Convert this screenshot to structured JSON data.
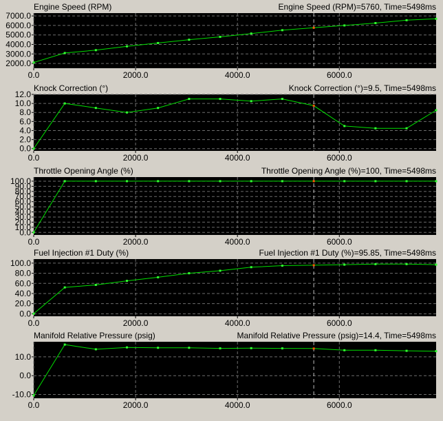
{
  "colors": {
    "window_bg": "#d4d0c8",
    "plot_bg": "#000000",
    "grid": "#6e6e6e",
    "line": "#00e000",
    "point": "#33ff33",
    "cursor_point": "#ff5500",
    "cursor_line": "#bdbdbd"
  },
  "cursor_time": 5498,
  "chart_data": [
    {
      "type": "line",
      "title": "Engine Speed (RPM)",
      "readout": "Engine Speed (RPM)=5760, Time=5498ms",
      "xlabel": "",
      "ylabel": "",
      "xlim": [
        0,
        7900
      ],
      "ylim": [
        1500,
        7300
      ],
      "x_ticks": [
        0,
        2000,
        4000,
        6000
      ],
      "x_tick_labels": [
        "0.0",
        "2000.0",
        "4000.0",
        "6000.0"
      ],
      "y_ticks": [
        2000,
        3000,
        4000,
        5000,
        6000,
        7000
      ],
      "y_tick_labels": [
        "2000.0",
        "3000.0",
        "4000.0",
        "5000.0",
        "6000.0",
        "7000.0"
      ],
      "grid": true,
      "x": [
        0,
        610,
        1220,
        1830,
        2440,
        3050,
        3660,
        4270,
        4880,
        5498,
        6100,
        6710,
        7320,
        7900
      ],
      "values": [
        2100,
        3100,
        3400,
        3800,
        4150,
        4500,
        4800,
        5150,
        5500,
        5760,
        6000,
        6250,
        6550,
        6700
      ],
      "cursor_index": 9
    },
    {
      "type": "line",
      "title": "Knock Correction (°)",
      "readout": "Knock Correction (°)=9.5, Time=5498ms",
      "xlabel": "",
      "ylabel": "",
      "xlim": [
        0,
        7900
      ],
      "ylim": [
        -0.5,
        12.0
      ],
      "x_ticks": [
        0,
        2000,
        4000,
        6000
      ],
      "x_tick_labels": [
        "0.0",
        "2000.0",
        "4000.0",
        "6000.0"
      ],
      "y_ticks": [
        0,
        2,
        4,
        6,
        8,
        10,
        12
      ],
      "y_tick_labels": [
        "0.0",
        "2.0",
        "4.0",
        "6.0",
        "8.0",
        "10.0",
        "12.0"
      ],
      "grid": true,
      "x": [
        0,
        610,
        1220,
        1830,
        2440,
        3050,
        3660,
        4270,
        4880,
        5498,
        6100,
        6710,
        7320,
        7900
      ],
      "values": [
        0.0,
        10.0,
        9.0,
        8.0,
        9.0,
        11.0,
        11.0,
        10.5,
        11.0,
        9.5,
        5.0,
        4.5,
        4.5,
        8.5
      ],
      "cursor_index": 9
    },
    {
      "type": "line",
      "title": "Throttle Opening Angle (%)",
      "readout": "Throttle Opening Angle (%)=100, Time=5498ms",
      "xlabel": "",
      "ylabel": "",
      "xlim": [
        0,
        7900
      ],
      "ylim": [
        -5,
        108
      ],
      "x_ticks": [
        0,
        2000,
        4000,
        6000
      ],
      "x_tick_labels": [
        "0.0",
        "2000.0",
        "4000.0",
        "6000.0"
      ],
      "y_ticks": [
        0,
        10,
        20,
        30,
        40,
        50,
        60,
        70,
        80,
        90,
        100
      ],
      "y_tick_labels": [
        "0.0",
        "10.0",
        "20.0",
        "30.0",
        "40.0",
        "50.0",
        "60.0",
        "70.0",
        "80.0",
        "90.0",
        "100.0"
      ],
      "grid": true,
      "x": [
        0,
        610,
        1220,
        1830,
        2440,
        3050,
        3660,
        4270,
        4880,
        5498,
        6100,
        6710,
        7320,
        7900
      ],
      "values": [
        0,
        100,
        100,
        100,
        100,
        100,
        100,
        100,
        100,
        100,
        100,
        100,
        100,
        100
      ],
      "cursor_index": 9
    },
    {
      "type": "line",
      "title": "Fuel Injection #1 Duty (%)",
      "readout": "Fuel Injection #1 Duty (%)=95.85, Time=5498ms",
      "xlabel": "",
      "ylabel": "",
      "xlim": [
        0,
        7900
      ],
      "ylim": [
        -5,
        108
      ],
      "x_ticks": [
        0,
        2000,
        4000,
        6000
      ],
      "x_tick_labels": [
        "0.0",
        "2000.0",
        "4000.0",
        "6000.0"
      ],
      "y_ticks": [
        0,
        20,
        40,
        60,
        80,
        100
      ],
      "y_tick_labels": [
        "0.0",
        "20.0",
        "40.0",
        "60.0",
        "80.0",
        "100.0"
      ],
      "grid": true,
      "x": [
        0,
        610,
        1220,
        1830,
        2440,
        3050,
        3660,
        4270,
        4880,
        5498,
        6100,
        6710,
        7320,
        7900
      ],
      "values": [
        0,
        52,
        57,
        65,
        72,
        80,
        85,
        92,
        95,
        95.85,
        97,
        98,
        98,
        97
      ],
      "cursor_index": 9
    },
    {
      "type": "line",
      "title": "Manifold Relative Pressure (psig)",
      "readout": "Manifold Relative Pressure (psig)=14.4, Time=5498ms",
      "xlabel": "",
      "ylabel": "",
      "xlim": [
        0,
        7900
      ],
      "ylim": [
        -12,
        18
      ],
      "x_ticks": [
        0,
        2000,
        4000,
        6000
      ],
      "x_tick_labels": [
        "0.0",
        "2000.0",
        "4000.0",
        "6000.0"
      ],
      "y_ticks": [
        -10,
        0,
        10
      ],
      "y_tick_labels": [
        "-10.0",
        "0.0",
        "10.0"
      ],
      "grid": true,
      "x": [
        0,
        610,
        1220,
        1830,
        2440,
        3050,
        3660,
        4270,
        4880,
        5498,
        6100,
        6710,
        7320,
        7900
      ],
      "values": [
        -10.5,
        16.5,
        14.0,
        15.0,
        14.8,
        14.8,
        14.5,
        14.6,
        14.5,
        14.4,
        13.5,
        13.5,
        13.2,
        13.0
      ],
      "cursor_index": 9
    }
  ]
}
